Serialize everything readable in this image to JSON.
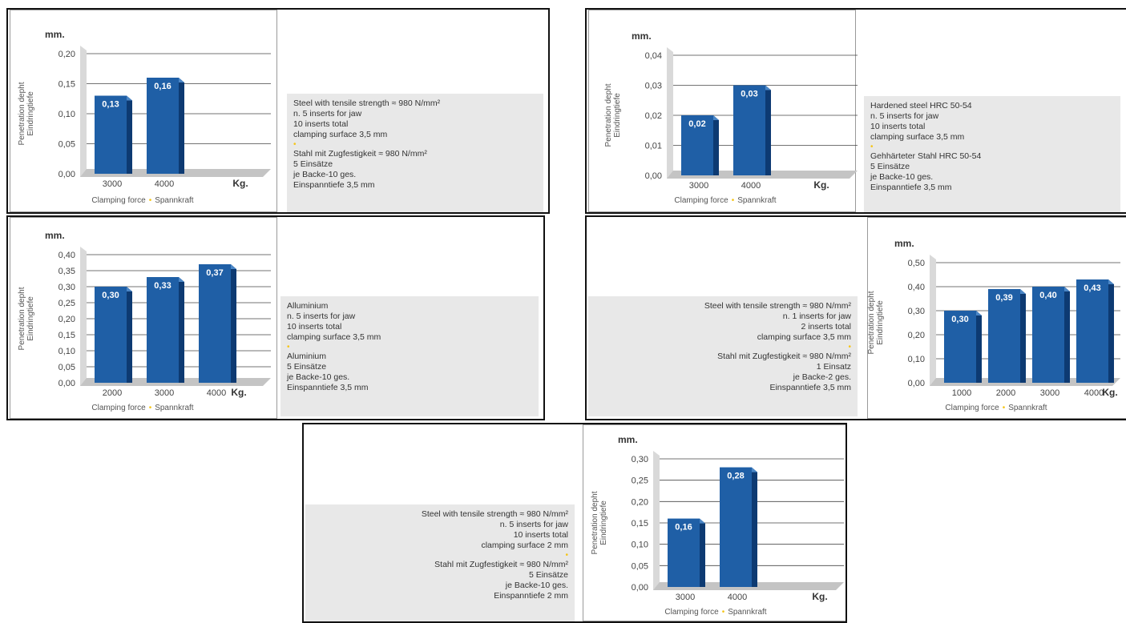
{
  "colors": {
    "bar": "#1f5fa6",
    "bar_side": "#0d3a72",
    "bar_top": "#4a86c6",
    "floor": "#c4c4c4",
    "accent_dot": "#f5c518",
    "grid": "#444444"
  },
  "chart_data": [
    {
      "type": "bar",
      "unit": "mm.",
      "ylabel": "Penetration depht",
      "ylabel2": "Eindringtiefe",
      "xunit": "Kg.",
      "xlabel": "Clamping force",
      "xlabel2": "Spannkraft",
      "ylim": [
        0,
        0.2
      ],
      "yticks": [
        "0,00",
        "0,05",
        "0,10",
        "0,15",
        "0,20"
      ],
      "categories": [
        "3000",
        "4000"
      ],
      "values": [
        0.13,
        0.16
      ],
      "value_labels": [
        "0,13",
        "0,16"
      ],
      "info": [
        "Steel with tensile strength ≈ 980 N/mm²",
        "n. 5 inserts for jaw",
        "10 inserts total",
        "clamping surface 3,5 mm",
        "•",
        "Stahl mit Zugfestigkeit ≈ 980 N/mm²",
        "5 Einsätze",
        "je Backe-10 ges.",
        "Einspanntiefe 3,5 mm"
      ]
    },
    {
      "type": "bar",
      "unit": "mm.",
      "ylabel": "Penetration depht",
      "ylabel2": "Eindringtiefe",
      "xunit": "Kg.",
      "xlabel": "Clamping force",
      "xlabel2": "Spannkraft",
      "ylim": [
        0,
        0.04
      ],
      "yticks": [
        "0,00",
        "0,01",
        "0,02",
        "0,03",
        "0,04"
      ],
      "categories": [
        "3000",
        "4000"
      ],
      "values": [
        0.02,
        0.03
      ],
      "value_labels": [
        "0,02",
        "0,03"
      ],
      "info": [
        "Hardened steel HRC 50-54",
        "n. 5 inserts for jaw",
        "10 inserts total",
        "clamping surface 3,5 mm",
        "•",
        "Gehhärteter Stahl HRC 50-54",
        "5 Einsätze",
        "je Backe-10 ges.",
        "Einspanntiefe 3,5 mm"
      ]
    },
    {
      "type": "bar",
      "unit": "mm.",
      "ylabel": "Penetration depht",
      "ylabel2": "Eindringtiefe",
      "xunit": "Kg.",
      "xlabel": "Clamping force",
      "xlabel2": "Spannkraft",
      "ylim": [
        0,
        0.4
      ],
      "yticks": [
        "0,00",
        "0,05",
        "0,10",
        "0,15",
        "0,20",
        "0,25",
        "0,30",
        "0,35",
        "0,40"
      ],
      "categories": [
        "2000",
        "3000",
        "4000"
      ],
      "values": [
        0.3,
        0.33,
        0.37
      ],
      "value_labels": [
        "0,30",
        "0,33",
        "0,37"
      ],
      "info": [
        "Alluminium",
        "n. 5 inserts for jaw",
        "10 inserts total",
        "clamping surface 3,5 mm",
        "•",
        "Aluminium",
        "5 Einsätze",
        "je Backe-10 ges.",
        "Einspanntiefe 3,5 mm"
      ]
    },
    {
      "type": "bar",
      "unit": "mm.",
      "ylabel": "Penetration depht",
      "ylabel2": "Eindringtiefe",
      "xunit": "Kg.",
      "xlabel": "Clamping force",
      "xlabel2": "Spannkraft",
      "ylim": [
        0,
        0.5
      ],
      "yticks": [
        "0,00",
        "0,10",
        "0,20",
        "0,30",
        "0,40",
        "0,50"
      ],
      "categories": [
        "1000",
        "2000",
        "3000",
        "4000"
      ],
      "values": [
        0.3,
        0.39,
        0.4,
        0.43
      ],
      "value_labels": [
        "0,30",
        "0,39",
        "0,40",
        "0,43"
      ],
      "info": [
        "Steel with tensile strength ≈ 980 N/mm²",
        "n. 1 inserts for jaw",
        "2 inserts total",
        "clamping surface 3,5 mm",
        "•",
        "Stahl mit Zugfestigkeit ≈ 980 N/mm²",
        "1 Einsatz",
        "je Backe-2 ges.",
        "Einspanntiefe 3,5 mm"
      ]
    },
    {
      "type": "bar",
      "unit": "mm.",
      "ylabel": "Penetration depht",
      "ylabel2": "Eindringtiefe",
      "xunit": "Kg.",
      "xlabel": "Clamping force",
      "xlabel2": "Spannkraft",
      "ylim": [
        0,
        0.3
      ],
      "yticks": [
        "0,00",
        "0,05",
        "0,10",
        "0,15",
        "0,20",
        "0,25",
        "0,30"
      ],
      "categories": [
        "3000",
        "4000"
      ],
      "values": [
        0.16,
        0.28
      ],
      "value_labels": [
        "0,16",
        "0,28"
      ],
      "info": [
        "Steel with tensile strength ≈ 980 N/mm²",
        "n. 5 inserts for jaw",
        "10 inserts total",
        "clamping surface 2 mm",
        "•",
        "Stahl mit Zugfestigkeit ≈ 980 N/mm²",
        "5 Einsätze",
        "je Backe-10 ges.",
        "Einspanntiefe 2 mm"
      ]
    }
  ]
}
